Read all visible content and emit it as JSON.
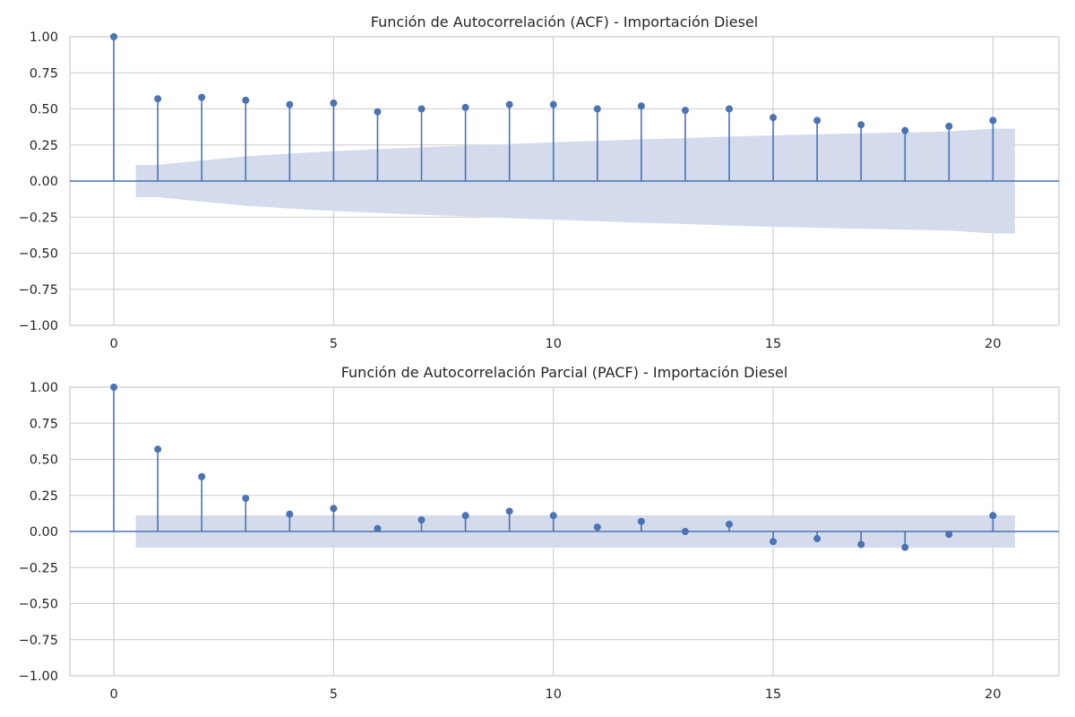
{
  "figure": {
    "background": "#ffffff",
    "marker_color": "#4c72b0",
    "band_color": "#d3dbec",
    "grid_color": "#cccccc"
  },
  "chart_data": [
    {
      "type": "stem",
      "title": "Función de Autocorrelación (ACF) - Importación Diesel",
      "xlabel": "",
      "ylabel": "",
      "xlim": [
        -1,
        21.5
      ],
      "ylim": [
        -1.0,
        1.0
      ],
      "xticks": [
        "0",
        "5",
        "10",
        "15",
        "20"
      ],
      "yticks": [
        "1.00",
        "0.75",
        "0.50",
        "0.25",
        "0.00",
        "−0.25",
        "−0.50",
        "−0.75",
        "−1.00"
      ],
      "grid": true,
      "lags": [
        0,
        1,
        2,
        3,
        4,
        5,
        6,
        7,
        8,
        9,
        10,
        11,
        12,
        13,
        14,
        15,
        16,
        17,
        18,
        19,
        20
      ],
      "values": [
        1.0,
        0.57,
        0.58,
        0.56,
        0.53,
        0.54,
        0.48,
        0.5,
        0.51,
        0.53,
        0.53,
        0.5,
        0.52,
        0.49,
        0.5,
        0.44,
        0.42,
        0.39,
        0.35,
        0.38,
        0.42
      ],
      "confidence_band": {
        "lags": [
          0.5,
          1,
          2,
          3,
          4,
          5,
          6,
          7,
          8,
          9,
          10,
          11,
          12,
          13,
          14,
          15,
          16,
          17,
          18,
          19,
          20,
          20.5
        ],
        "upper": [
          0.112,
          0.112,
          0.143,
          0.171,
          0.19,
          0.207,
          0.221,
          0.234,
          0.245,
          0.257,
          0.268,
          0.279,
          0.289,
          0.298,
          0.308,
          0.317,
          0.324,
          0.331,
          0.337,
          0.343,
          0.363,
          0.363
        ],
        "lower": [
          -0.112,
          -0.112,
          -0.143,
          -0.171,
          -0.19,
          -0.207,
          -0.221,
          -0.234,
          -0.245,
          -0.257,
          -0.268,
          -0.279,
          -0.289,
          -0.298,
          -0.308,
          -0.317,
          -0.324,
          -0.331,
          -0.337,
          -0.343,
          -0.363,
          -0.363
        ]
      }
    },
    {
      "type": "stem",
      "title": "Función de Autocorrelación Parcial (PACF) - Importación Diesel",
      "xlabel": "",
      "ylabel": "",
      "xlim": [
        -1,
        21.5
      ],
      "ylim": [
        -1.0,
        1.0
      ],
      "xticks": [
        "0",
        "5",
        "10",
        "15",
        "20"
      ],
      "yticks": [
        "1.00",
        "0.75",
        "0.50",
        "0.25",
        "0.00",
        "−0.25",
        "−0.50",
        "−0.75",
        "−1.00"
      ],
      "grid": true,
      "lags": [
        0,
        1,
        2,
        3,
        4,
        5,
        6,
        7,
        8,
        9,
        10,
        11,
        12,
        13,
        14,
        15,
        16,
        17,
        18,
        19,
        20
      ],
      "values": [
        1.0,
        0.57,
        0.38,
        0.23,
        0.12,
        0.16,
        0.02,
        0.08,
        0.11,
        0.14,
        0.11,
        0.03,
        0.07,
        0.0,
        0.05,
        -0.07,
        -0.05,
        -0.09,
        -0.11,
        -0.02,
        0.11
      ],
      "confidence_band": {
        "lags": [
          0.5,
          20.5
        ],
        "upper": [
          0.112,
          0.112
        ],
        "lower": [
          -0.112,
          -0.112
        ]
      }
    }
  ]
}
